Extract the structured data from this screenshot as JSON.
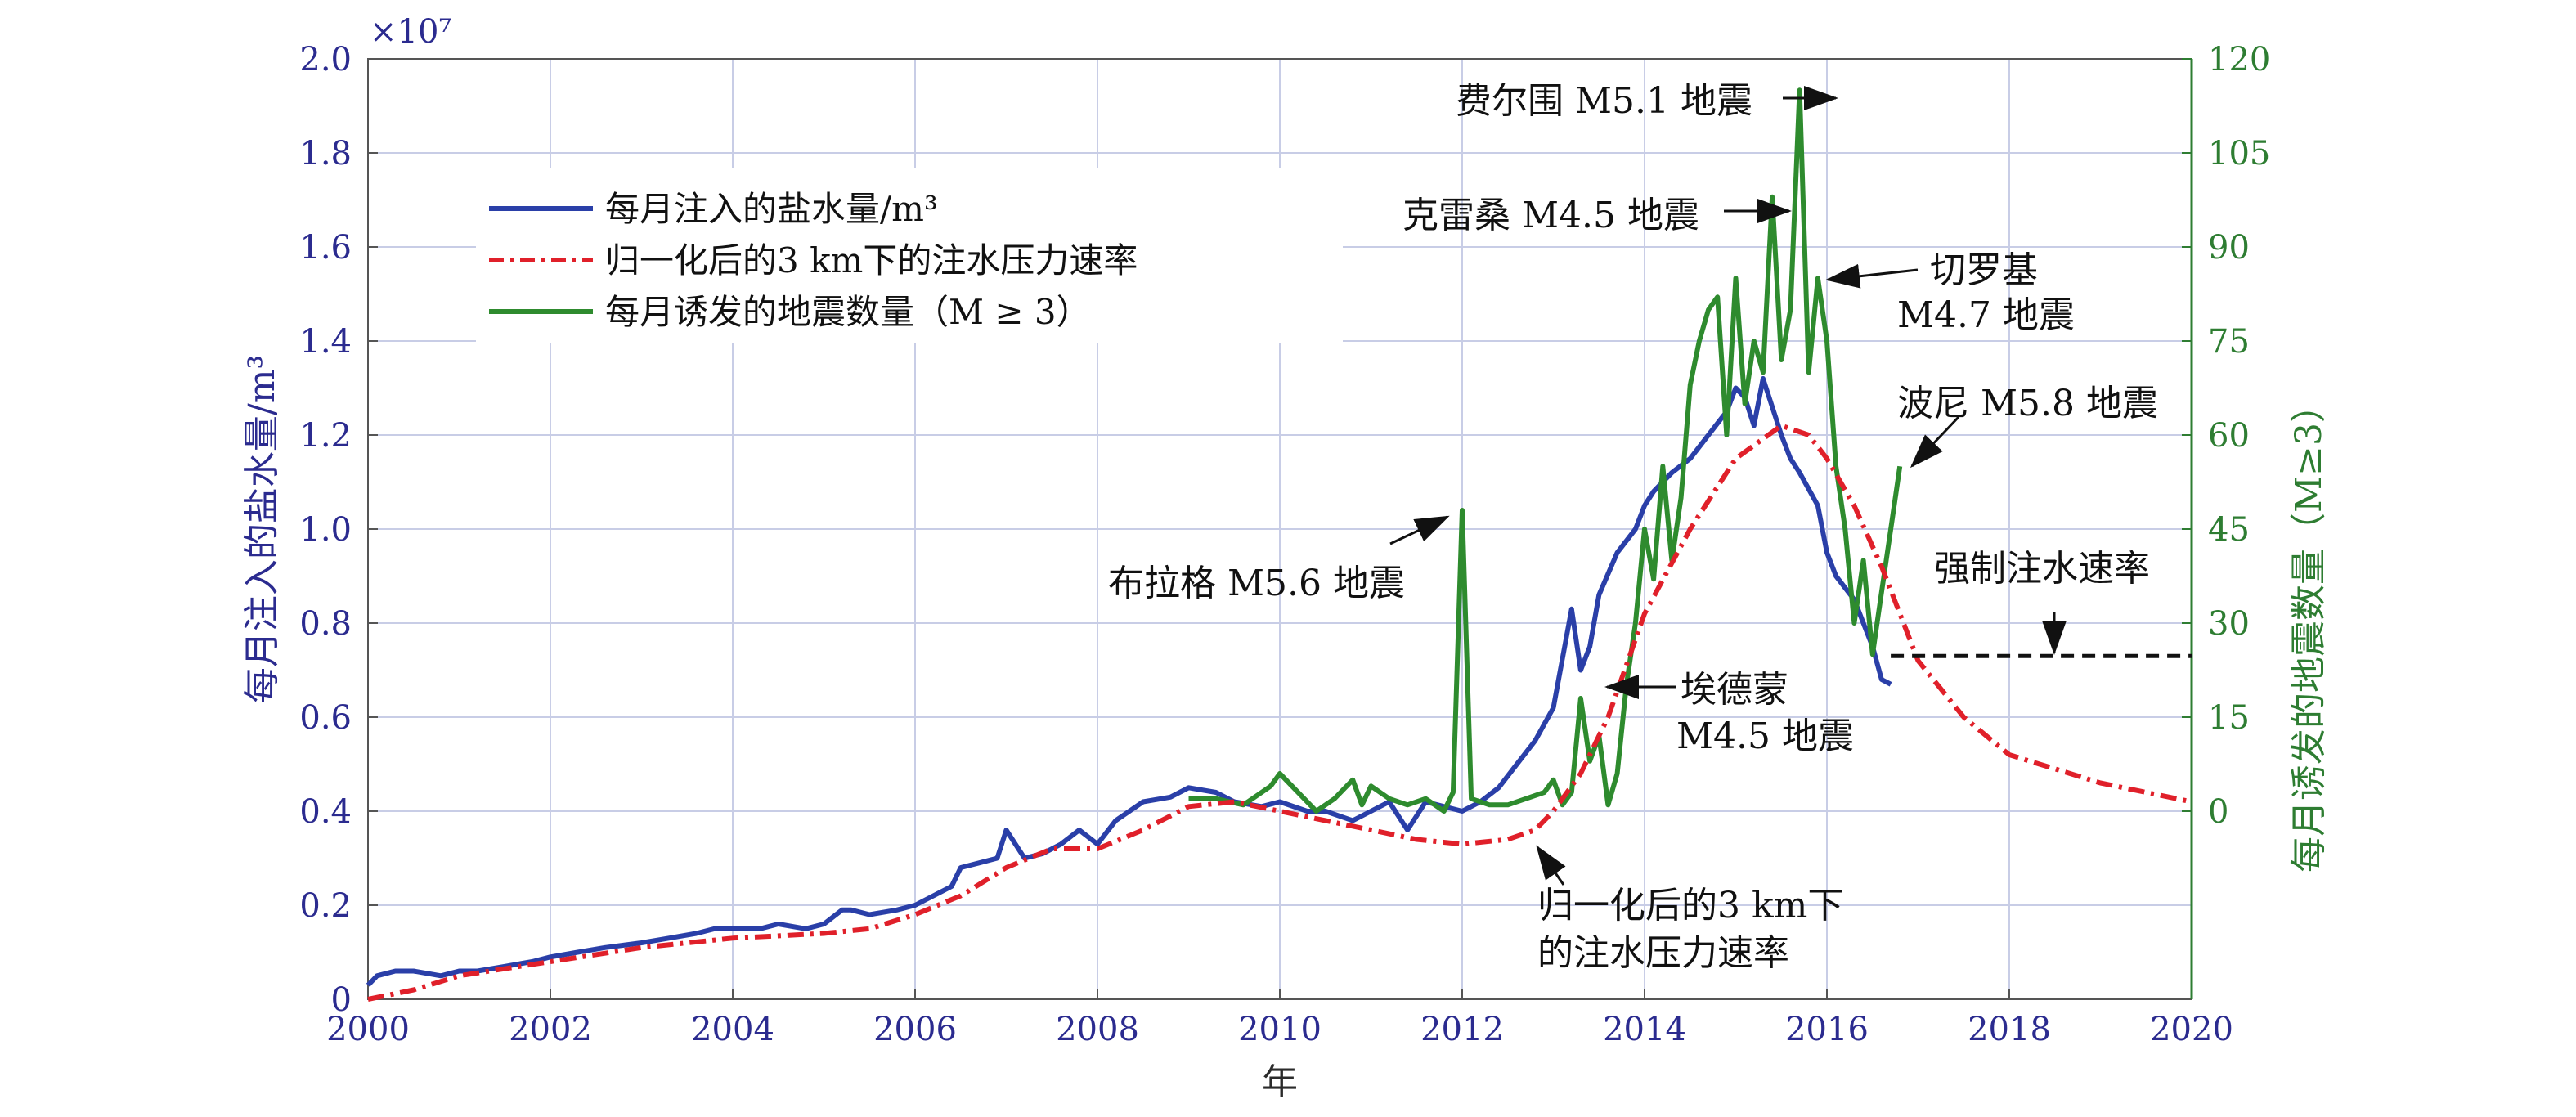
{
  "chart_data": {
    "type": "line",
    "xlabel": "年",
    "ylabel_left": "每月注入的盐水量/m³",
    "ylabel_right": "每月诱发的地震数量（M≥3）",
    "left_exponent": "×10⁷",
    "xlim": [
      2000,
      2020
    ],
    "ylim_left": [
      0,
      2.0
    ],
    "ylim_right": [
      0,
      120
    ],
    "right_axis_zero_at_left_value": 0.4,
    "x_ticks": [
      "2000",
      "2002",
      "2004",
      "2006",
      "2008",
      "2010",
      "2012",
      "2014",
      "2016",
      "2018",
      "2020"
    ],
    "left_ticks": [
      "0",
      "0.2",
      "0.4",
      "0.6",
      "0.8",
      "1.0",
      "1.2",
      "1.4",
      "1.6",
      "1.8",
      "2.0"
    ],
    "right_ticks": [
      "0",
      "15",
      "30",
      "45",
      "60",
      "75",
      "90",
      "105",
      "120"
    ],
    "grid": true,
    "legend_position": "top-left",
    "colors": {
      "injection": "#2a3fa8",
      "pressure": "#e0202a",
      "quakes": "#2e8b2e",
      "mandated": "#111111",
      "axis_left": "#2b2b8f",
      "axis_right": "#2e7d32"
    },
    "legend": [
      {
        "label": "每月注入的盐水量/m³",
        "color": "#2a3fa8",
        "style": "solid"
      },
      {
        "label": "归一化后的3 km下的注水压力速率",
        "color": "#e0202a",
        "style": "dashdot"
      },
      {
        "label": "每月诱发的地震数量（M ≥ 3）",
        "color": "#2e8b2e",
        "style": "solid"
      }
    ],
    "series": [
      {
        "name": "每月注入的盐水量/m³",
        "axis": "left",
        "x": [
          2000.0,
          2000.1,
          2000.3,
          2000.5,
          2000.8,
          2001.0,
          2001.2,
          2001.5,
          2001.8,
          2002.0,
          2002.3,
          2002.6,
          2003.0,
          2003.3,
          2003.6,
          2003.8,
          2004.0,
          2004.3,
          2004.5,
          2004.8,
          2005.0,
          2005.2,
          2005.3,
          2005.5,
          2005.8,
          2006.0,
          2006.2,
          2006.4,
          2006.5,
          2006.7,
          2006.9,
          2007.0,
          2007.2,
          2007.4,
          2007.6,
          2007.8,
          2008.0,
          2008.2,
          2008.5,
          2008.8,
          2009.0,
          2009.3,
          2009.5,
          2009.8,
          2010.0,
          2010.3,
          2010.5,
          2010.8,
          2011.0,
          2011.2,
          2011.4,
          2011.6,
          2011.8,
          2012.0,
          2012.2,
          2012.4,
          2012.6,
          2012.8,
          2013.0,
          2013.2,
          2013.3,
          2013.4,
          2013.5,
          2013.7,
          2013.9,
          2014.0,
          2014.1,
          2014.2,
          2014.3,
          2014.5,
          2014.7,
          2014.9,
          2015.0,
          2015.1,
          2015.2,
          2015.3,
          2015.5,
          2015.6,
          2015.7,
          2015.9,
          2016.0,
          2016.1,
          2016.3,
          2016.5,
          2016.6,
          2016.7
        ],
        "y": [
          0.03,
          0.05,
          0.06,
          0.06,
          0.05,
          0.06,
          0.06,
          0.07,
          0.08,
          0.09,
          0.1,
          0.11,
          0.12,
          0.13,
          0.14,
          0.15,
          0.15,
          0.15,
          0.16,
          0.15,
          0.16,
          0.19,
          0.19,
          0.18,
          0.19,
          0.2,
          0.22,
          0.24,
          0.28,
          0.29,
          0.3,
          0.36,
          0.3,
          0.31,
          0.33,
          0.36,
          0.33,
          0.38,
          0.42,
          0.43,
          0.45,
          0.44,
          0.42,
          0.41,
          0.42,
          0.4,
          0.4,
          0.38,
          0.4,
          0.42,
          0.36,
          0.42,
          0.41,
          0.4,
          0.42,
          0.45,
          0.5,
          0.55,
          0.62,
          0.83,
          0.7,
          0.75,
          0.86,
          0.95,
          1.0,
          1.05,
          1.08,
          1.1,
          1.12,
          1.15,
          1.2,
          1.25,
          1.3,
          1.28,
          1.22,
          1.32,
          1.2,
          1.15,
          1.12,
          1.05,
          0.95,
          0.9,
          0.85,
          0.75,
          0.68,
          0.67
        ]
      },
      {
        "name": "归一化后的3 km下的注水压力速率",
        "axis": "left",
        "x": [
          2000.0,
          2000.5,
          2001.0,
          2002.0,
          2003.0,
          2004.0,
          2005.0,
          2005.5,
          2006.0,
          2006.5,
          2007.0,
          2007.5,
          2008.0,
          2008.5,
          2009.0,
          2009.5,
          2010.0,
          2010.5,
          2011.0,
          2011.5,
          2012.0,
          2012.5,
          2012.8,
          2013.0,
          2013.3,
          2013.6,
          2014.0,
          2014.5,
          2015.0,
          2015.5,
          2015.8,
          2016.0,
          2016.3,
          2016.6,
          2017.0,
          2017.5,
          2018.0,
          2019.0,
          2020.0
        ],
        "y": [
          0.0,
          0.02,
          0.05,
          0.08,
          0.11,
          0.13,
          0.14,
          0.15,
          0.18,
          0.22,
          0.28,
          0.32,
          0.32,
          0.36,
          0.41,
          0.42,
          0.4,
          0.38,
          0.36,
          0.34,
          0.33,
          0.34,
          0.36,
          0.4,
          0.48,
          0.6,
          0.82,
          1.0,
          1.15,
          1.22,
          1.2,
          1.15,
          1.05,
          0.92,
          0.72,
          0.6,
          0.52,
          0.46,
          0.42
        ]
      },
      {
        "name": "每月诱发的地震数量（M ≥ 3）",
        "axis": "right",
        "x": [
          2009.0,
          2009.3,
          2009.6,
          2009.9,
          2010.0,
          2010.2,
          2010.4,
          2010.6,
          2010.8,
          2010.9,
          2011.0,
          2011.2,
          2011.4,
          2011.6,
          2011.8,
          2011.9,
          2012.0,
          2012.1,
          2012.3,
          2012.5,
          2012.7,
          2012.9,
          2013.0,
          2013.1,
          2013.2,
          2013.3,
          2013.4,
          2013.5,
          2013.6,
          2013.7,
          2013.8,
          2013.9,
          2014.0,
          2014.1,
          2014.2,
          2014.3,
          2014.4,
          2014.5,
          2014.6,
          2014.7,
          2014.8,
          2014.9,
          2015.0,
          2015.1,
          2015.2,
          2015.3,
          2015.4,
          2015.5,
          2015.6,
          2015.7,
          2015.8,
          2015.9,
          2016.0,
          2016.1,
          2016.2,
          2016.3,
          2016.4,
          2016.5,
          2016.6,
          2016.7,
          2016.8
        ],
        "y": [
          2,
          2,
          1,
          4,
          6,
          3,
          0,
          2,
          5,
          1,
          4,
          2,
          1,
          2,
          0,
          3,
          48,
          2,
          1,
          1,
          2,
          3,
          5,
          1,
          3,
          18,
          8,
          12,
          1,
          6,
          20,
          30,
          45,
          37,
          55,
          40,
          50,
          68,
          75,
          80,
          82,
          60,
          85,
          65,
          75,
          70,
          98,
          72,
          80,
          115,
          70,
          85,
          75,
          55,
          45,
          30,
          40,
          25,
          35,
          45,
          55
        ]
      },
      {
        "name": "强制注水速率",
        "axis": "left",
        "x": [
          2016.7,
          2020.0
        ],
        "y": [
          0.73,
          0.73
        ]
      }
    ],
    "annotations": [
      {
        "id": "feierwei",
        "text": "费尔围 M5.1 地震"
      },
      {
        "id": "kelei",
        "text": "克雷桑 M4.5 地震"
      },
      {
        "id": "qieluoji_1",
        "text": "切罗基"
      },
      {
        "id": "qieluoji_2",
        "text": "M4.7 地震"
      },
      {
        "id": "boni",
        "text": "波尼 M5.8 地震"
      },
      {
        "id": "bulage",
        "text": "布拉格 M5.6 地震"
      },
      {
        "id": "qiangzhi",
        "text": "强制注水速率"
      },
      {
        "id": "aidemeng_1",
        "text": "埃德蒙"
      },
      {
        "id": "aidemeng_2",
        "text": "M4.5 地震"
      },
      {
        "id": "guiyi_1",
        "text": "归一化后的3 km下"
      },
      {
        "id": "guiyi_2",
        "text": "的注水压力速率"
      }
    ]
  }
}
